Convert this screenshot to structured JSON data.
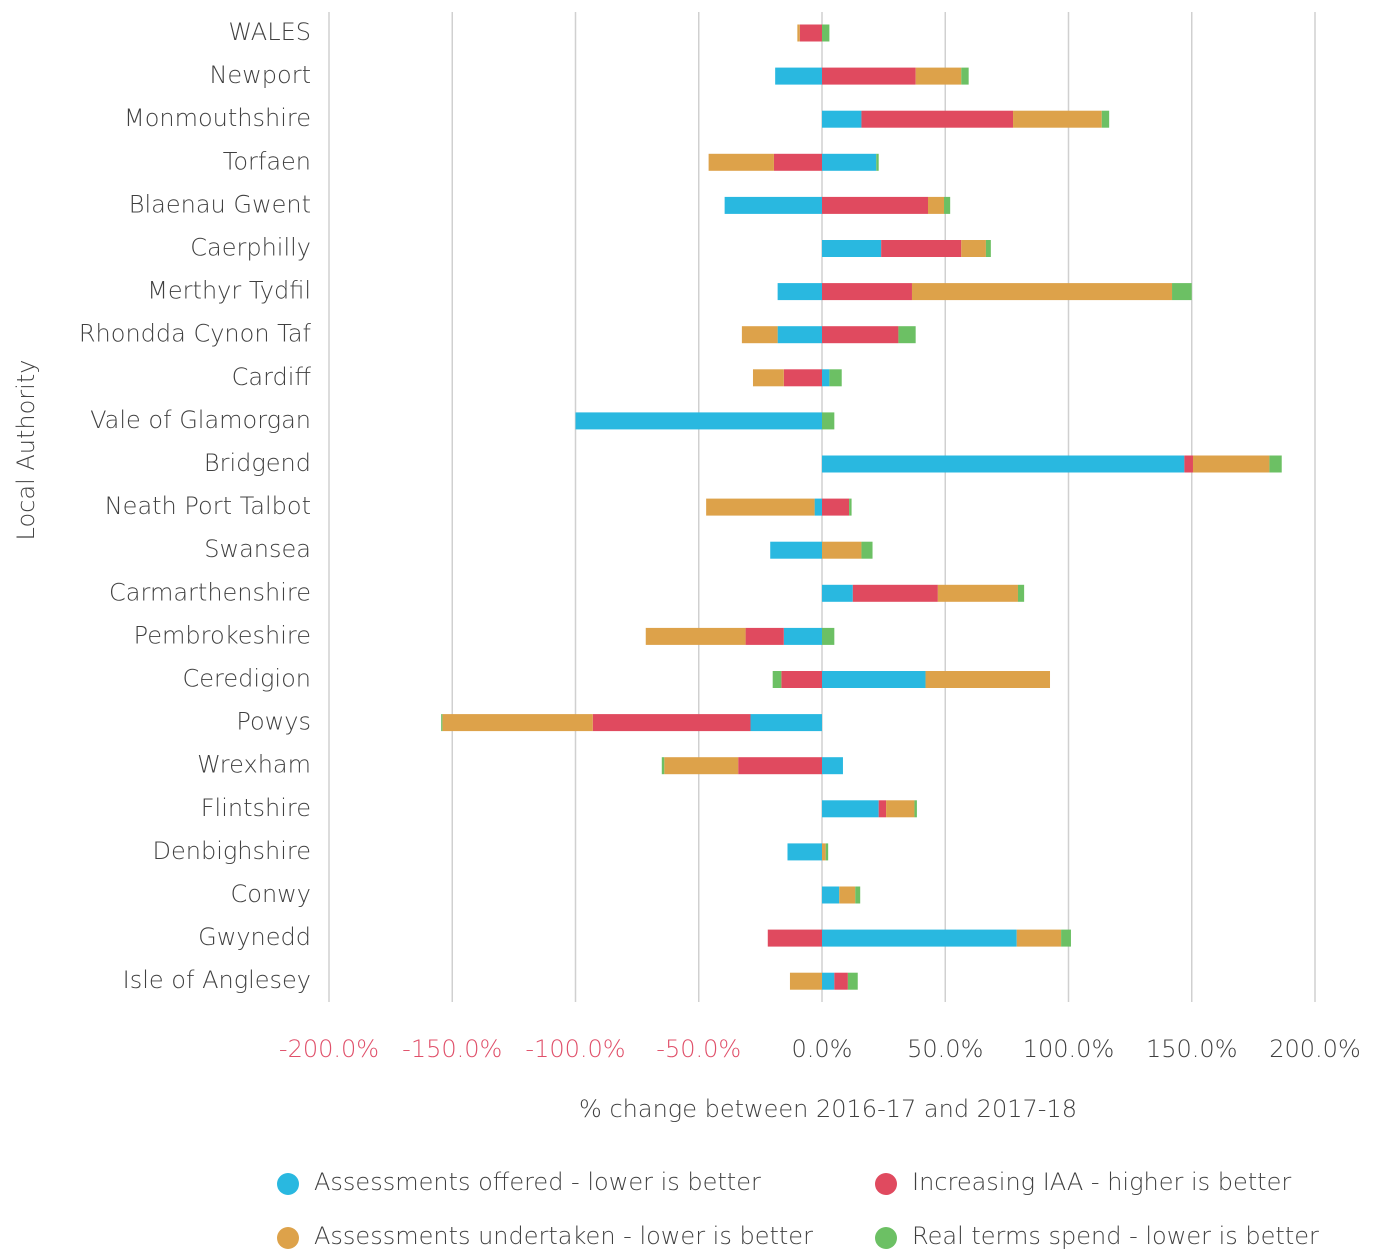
{
  "chart_data": {
    "type": "stacked_barh",
    "xlabel": "% change between 2016-17 and 2017-18",
    "ylabel": "Local Authority",
    "categories": [
      "WALES",
      "Newport",
      "Monmouthshire",
      "Torfaen",
      "Blaenau Gwent",
      "Caerphilly",
      "Merthyr Tydfil",
      "Rhondda Cynon Taf",
      "Cardiff",
      "Vale of Glamorgan",
      "Bridgend",
      "Neath Port Talbot",
      "Swansea",
      "Carmarthenshire",
      "Pembrokeshire",
      "Ceredigion",
      "Powys",
      "Wrexham",
      "Flintshire",
      "Denbighshire",
      "Conwy",
      "Gwynedd",
      "Isle of Anglesey"
    ],
    "series": [
      {
        "name": "Assessments offered - lower is better",
        "color": "#29b8e0",
        "values": [
          0,
          -19,
          16,
          22,
          -39.5,
          24,
          -18,
          -18,
          3,
          -100,
          147,
          -3,
          -21,
          12.5,
          -15.5,
          42,
          -29,
          8.5,
          23,
          -14,
          7,
          79,
          5
        ]
      },
      {
        "name": "Increasing IAA - higher is better",
        "color": "#e04a5f",
        "values": [
          -9,
          38,
          61.5,
          -19.5,
          43,
          32.5,
          36.5,
          31,
          -15.5,
          0,
          3.5,
          11,
          0,
          34.5,
          -15.5,
          -16.5,
          -64,
          -34,
          3,
          0,
          0,
          -22,
          5.5
        ]
      },
      {
        "name": "Assessments undertaken - lower is better",
        "color": "#dda24a",
        "values": [
          -1,
          18.5,
          36,
          -26.5,
          6.5,
          10,
          105.5,
          -14.5,
          -12.5,
          0,
          31,
          -44,
          16,
          32.5,
          -40.5,
          50.5,
          -61,
          -30,
          11.5,
          1.5,
          6.5,
          18,
          -13
        ]
      },
      {
        "name": "Real terms spend - lower is better",
        "color": "#6cc064",
        "values": [
          3,
          3,
          3,
          1,
          2.5,
          2,
          8,
          7,
          5,
          5,
          5,
          1,
          4.5,
          2.5,
          5,
          -3.5,
          -0.5,
          -1,
          1,
          1,
          2,
          4,
          4
        ]
      }
    ],
    "xlim": [
      -200,
      200
    ],
    "xticks": [
      {
        "value": -200,
        "label": "-200.0%"
      },
      {
        "value": -150,
        "label": "-150.0%"
      },
      {
        "value": -100,
        "label": "-100.0%"
      },
      {
        "value": -50,
        "label": "-50.0%"
      },
      {
        "value": 0,
        "label": "0.0%"
      },
      {
        "value": 50,
        "label": "50.0%"
      },
      {
        "value": 100,
        "label": "100.0%"
      },
      {
        "value": 150,
        "label": "150.0%"
      },
      {
        "value": 200,
        "label": "200.0%"
      }
    ],
    "negative_tick_color": "#e0506a",
    "grid": true,
    "legend": "bottom"
  }
}
